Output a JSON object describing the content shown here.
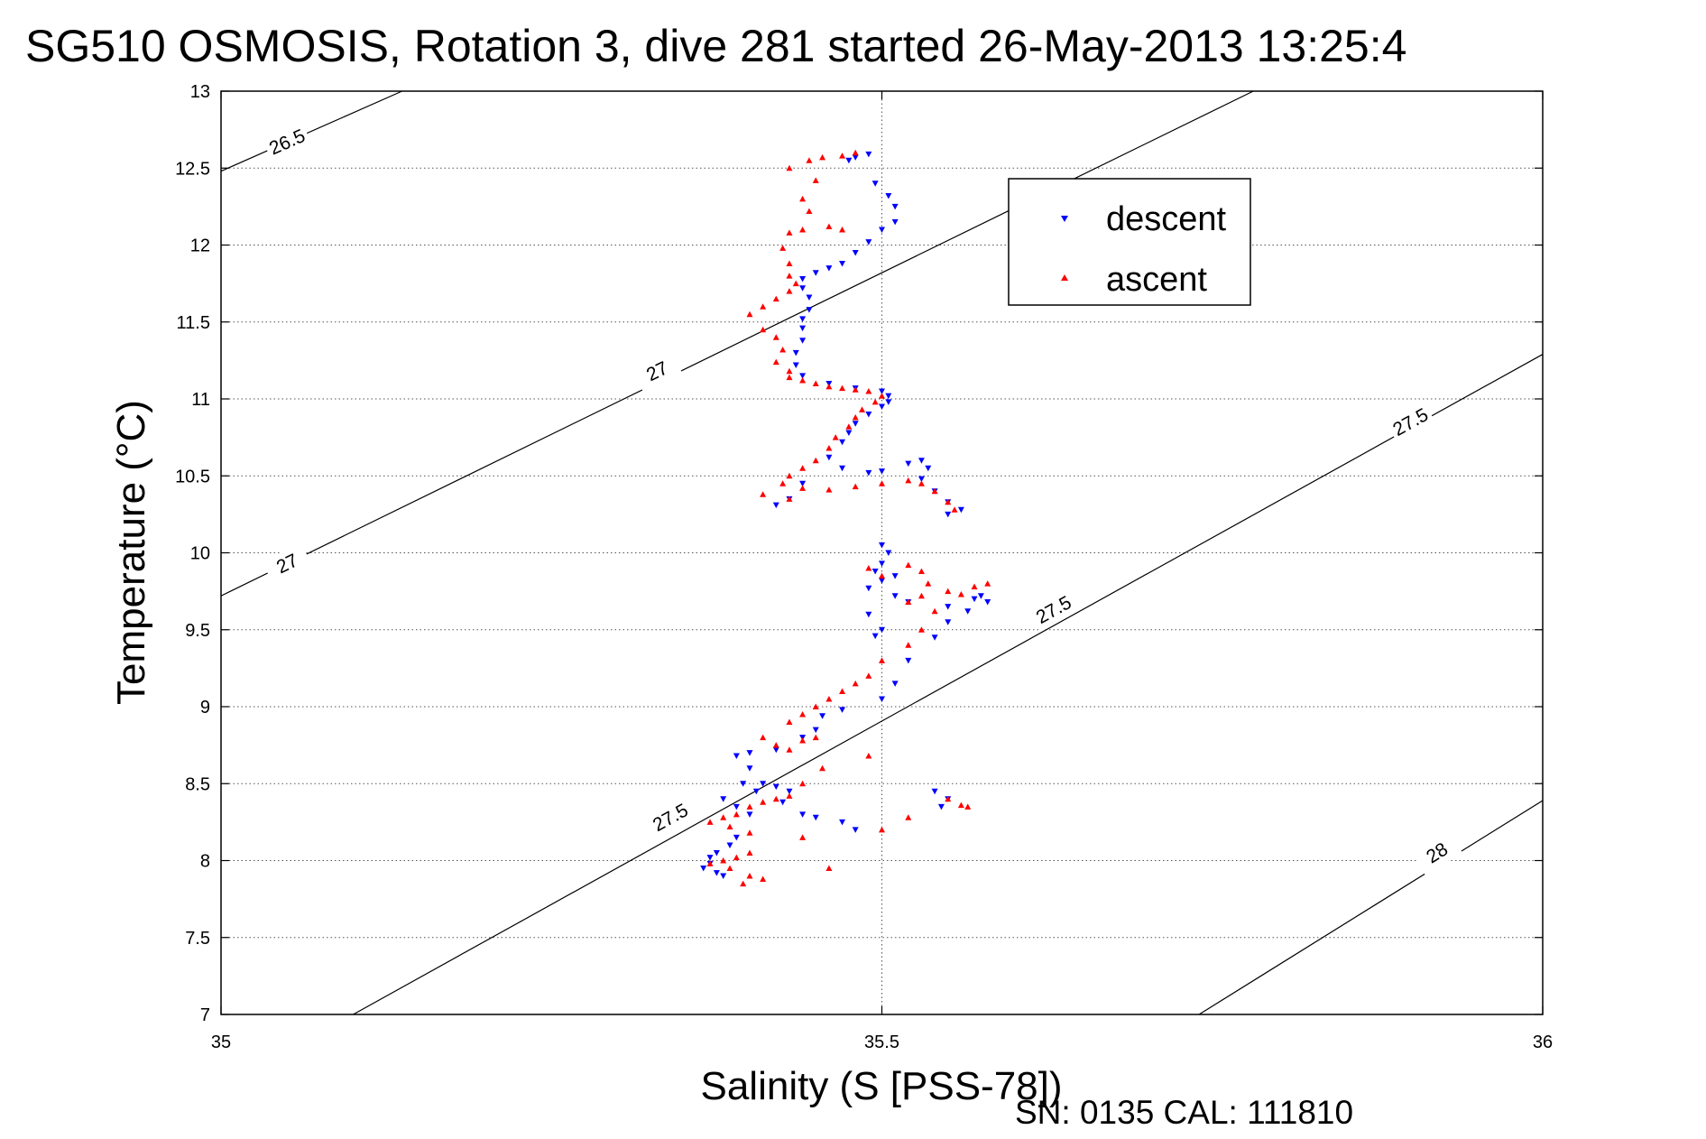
{
  "chart_data": {
    "type": "scatter",
    "title": "SG510 OSMOSIS, Rotation 3, dive 281 started 26-May-2013 13:25:4",
    "xlabel": "Salinity (S [PSS-78])",
    "ylabel": "Temperature (°C)",
    "xlim": [
      35,
      36
    ],
    "ylim": [
      7,
      13
    ],
    "x_ticks": [
      "35",
      "35.5",
      "36"
    ],
    "y_ticks": [
      "7",
      "7.5",
      "8",
      "8.5",
      "9",
      "9.5",
      "10",
      "10.5",
      "11",
      "11.5",
      "12",
      "12.5",
      "13"
    ],
    "grid": true,
    "legend_position": "top-right",
    "footer_text": "SN: 0135  CAL: 111810",
    "density_contours": [
      {
        "label": "26.5",
        "points": [
          [
            35,
            12.48
          ],
          [
            35.137,
            13
          ]
        ],
        "label_at": [
          [
            35.05,
            12.67
          ]
        ]
      },
      {
        "label": "27",
        "points": [
          [
            35,
            9.72
          ],
          [
            35.781,
            13
          ]
        ],
        "label_at": [
          [
            35.05,
            9.93
          ],
          [
            35.33,
            11.18
          ]
        ]
      },
      {
        "label": "27.5",
        "points": [
          [
            35.1,
            7
          ],
          [
            36,
            11.29
          ]
        ],
        "label_at": [
          [
            35.34,
            8.28
          ],
          [
            35.63,
            9.63
          ],
          [
            35.9,
            10.85
          ]
        ]
      },
      {
        "label": "28",
        "points": [
          [
            35.74,
            7
          ],
          [
            36,
            8.39
          ]
        ],
        "label_at": [
          [
            35.92,
            8.05
          ]
        ]
      }
    ],
    "series": [
      {
        "name": "descent",
        "color": "#0000ff",
        "marker": "triangle-down",
        "points": [
          [
            35.48,
            12.57
          ],
          [
            35.475,
            12.55
          ],
          [
            35.49,
            12.59
          ],
          [
            35.495,
            12.4
          ],
          [
            35.505,
            12.32
          ],
          [
            35.51,
            12.25
          ],
          [
            35.51,
            12.15
          ],
          [
            35.5,
            12.1
          ],
          [
            35.49,
            12.02
          ],
          [
            35.48,
            11.95
          ],
          [
            35.47,
            11.88
          ],
          [
            35.46,
            11.85
          ],
          [
            35.45,
            11.82
          ],
          [
            35.44,
            11.78
          ],
          [
            35.44,
            11.72
          ],
          [
            35.445,
            11.66
          ],
          [
            35.445,
            11.58
          ],
          [
            35.44,
            11.52
          ],
          [
            35.44,
            11.46
          ],
          [
            35.44,
            11.38
          ],
          [
            35.435,
            11.3
          ],
          [
            35.435,
            11.22
          ],
          [
            35.44,
            11.15
          ],
          [
            35.46,
            11.1
          ],
          [
            35.48,
            11.07
          ],
          [
            35.5,
            11.05
          ],
          [
            35.505,
            11.02
          ],
          [
            35.505,
            10.98
          ],
          [
            35.5,
            10.95
          ],
          [
            35.49,
            10.9
          ],
          [
            35.48,
            10.84
          ],
          [
            35.475,
            10.78
          ],
          [
            35.47,
            10.72
          ],
          [
            35.46,
            10.62
          ],
          [
            35.47,
            10.55
          ],
          [
            35.49,
            10.52
          ],
          [
            35.5,
            10.53
          ],
          [
            35.52,
            10.58
          ],
          [
            35.53,
            10.6
          ],
          [
            35.535,
            10.55
          ],
          [
            35.53,
            10.48
          ],
          [
            35.54,
            10.4
          ],
          [
            35.55,
            10.33
          ],
          [
            35.56,
            10.28
          ],
          [
            35.55,
            10.25
          ],
          [
            35.42,
            10.31
          ],
          [
            35.43,
            10.35
          ],
          [
            35.44,
            10.45
          ],
          [
            35.5,
            10.05
          ],
          [
            35.505,
            10.0
          ],
          [
            35.5,
            9.93
          ],
          [
            35.495,
            9.88
          ],
          [
            35.51,
            9.85
          ],
          [
            35.5,
            9.82
          ],
          [
            35.49,
            9.77
          ],
          [
            35.51,
            9.72
          ],
          [
            35.52,
            9.68
          ],
          [
            35.49,
            9.6
          ],
          [
            35.5,
            9.5
          ],
          [
            35.495,
            9.46
          ],
          [
            35.55,
            9.65
          ],
          [
            35.57,
            9.7
          ],
          [
            35.575,
            9.72
          ],
          [
            35.58,
            9.68
          ],
          [
            35.565,
            9.62
          ],
          [
            35.55,
            9.55
          ],
          [
            35.54,
            9.45
          ],
          [
            35.52,
            9.3
          ],
          [
            35.51,
            9.15
          ],
          [
            35.5,
            9.05
          ],
          [
            35.47,
            8.98
          ],
          [
            35.455,
            8.94
          ],
          [
            35.45,
            8.85
          ],
          [
            35.44,
            8.8
          ],
          [
            35.42,
            8.72
          ],
          [
            35.4,
            8.7
          ],
          [
            35.39,
            8.68
          ],
          [
            35.4,
            8.6
          ],
          [
            35.41,
            8.5
          ],
          [
            35.405,
            8.45
          ],
          [
            35.395,
            8.5
          ],
          [
            35.38,
            8.4
          ],
          [
            35.39,
            8.35
          ],
          [
            35.4,
            8.3
          ],
          [
            35.42,
            8.48
          ],
          [
            35.43,
            8.45
          ],
          [
            35.425,
            8.38
          ],
          [
            35.44,
            8.3
          ],
          [
            35.45,
            8.28
          ],
          [
            35.47,
            8.25
          ],
          [
            35.48,
            8.2
          ],
          [
            35.39,
            8.15
          ],
          [
            35.385,
            8.1
          ],
          [
            35.375,
            8.05
          ],
          [
            35.37,
            8.02
          ],
          [
            35.37,
            7.98
          ],
          [
            35.365,
            7.95
          ],
          [
            35.375,
            7.92
          ],
          [
            35.38,
            7.9
          ],
          [
            35.54,
            8.45
          ],
          [
            35.55,
            8.4
          ],
          [
            35.545,
            8.35
          ]
        ]
      },
      {
        "name": "ascent",
        "color": "#ff0000",
        "marker": "triangle-up",
        "points": [
          [
            35.48,
            12.6
          ],
          [
            35.47,
            12.58
          ],
          [
            35.455,
            12.57
          ],
          [
            35.445,
            12.55
          ],
          [
            35.43,
            12.5
          ],
          [
            35.45,
            12.42
          ],
          [
            35.44,
            12.3
          ],
          [
            35.445,
            12.22
          ],
          [
            35.46,
            12.12
          ],
          [
            35.47,
            12.1
          ],
          [
            35.44,
            12.1
          ],
          [
            35.43,
            12.08
          ],
          [
            35.425,
            11.98
          ],
          [
            35.43,
            11.88
          ],
          [
            35.43,
            11.8
          ],
          [
            35.435,
            11.75
          ],
          [
            35.43,
            11.7
          ],
          [
            35.42,
            11.65
          ],
          [
            35.41,
            11.6
          ],
          [
            35.4,
            11.55
          ],
          [
            35.41,
            11.45
          ],
          [
            35.42,
            11.4
          ],
          [
            35.425,
            11.32
          ],
          [
            35.42,
            11.24
          ],
          [
            35.43,
            11.18
          ],
          [
            35.43,
            11.14
          ],
          [
            35.44,
            11.12
          ],
          [
            35.45,
            11.1
          ],
          [
            35.46,
            11.08
          ],
          [
            35.47,
            11.07
          ],
          [
            35.48,
            11.06
          ],
          [
            35.49,
            11.05
          ],
          [
            35.5,
            11.02
          ],
          [
            35.495,
            10.98
          ],
          [
            35.485,
            10.93
          ],
          [
            35.48,
            10.88
          ],
          [
            35.475,
            10.82
          ],
          [
            35.465,
            10.75
          ],
          [
            35.46,
            10.68
          ],
          [
            35.45,
            10.6
          ],
          [
            35.44,
            10.55
          ],
          [
            35.43,
            10.5
          ],
          [
            35.425,
            10.45
          ],
          [
            35.44,
            10.42
          ],
          [
            35.46,
            10.41
          ],
          [
            35.48,
            10.43
          ],
          [
            35.5,
            10.45
          ],
          [
            35.52,
            10.47
          ],
          [
            35.53,
            10.45
          ],
          [
            35.54,
            10.4
          ],
          [
            35.55,
            10.33
          ],
          [
            35.555,
            10.28
          ],
          [
            35.41,
            10.38
          ],
          [
            35.43,
            10.35
          ],
          [
            35.49,
            9.9
          ],
          [
            35.5,
            9.85
          ],
          [
            35.52,
            9.92
          ],
          [
            35.53,
            9.88
          ],
          [
            35.535,
            9.8
          ],
          [
            35.53,
            9.72
          ],
          [
            35.52,
            9.68
          ],
          [
            35.54,
            9.62
          ],
          [
            35.55,
            9.75
          ],
          [
            35.56,
            9.73
          ],
          [
            35.57,
            9.78
          ],
          [
            35.58,
            9.8
          ],
          [
            35.53,
            9.5
          ],
          [
            35.52,
            9.4
          ],
          [
            35.5,
            9.3
          ],
          [
            35.49,
            9.2
          ],
          [
            35.48,
            9.15
          ],
          [
            35.47,
            9.1
          ],
          [
            35.46,
            9.05
          ],
          [
            35.45,
            9.0
          ],
          [
            35.44,
            8.95
          ],
          [
            35.43,
            8.9
          ],
          [
            35.45,
            8.8
          ],
          [
            35.44,
            8.78
          ],
          [
            35.42,
            8.75
          ],
          [
            35.41,
            8.8
          ],
          [
            35.43,
            8.72
          ],
          [
            35.49,
            8.68
          ],
          [
            35.455,
            8.6
          ],
          [
            35.44,
            8.5
          ],
          [
            35.43,
            8.42
          ],
          [
            35.42,
            8.4
          ],
          [
            35.41,
            8.38
          ],
          [
            35.4,
            8.35
          ],
          [
            35.39,
            8.3
          ],
          [
            35.38,
            8.28
          ],
          [
            35.37,
            8.25
          ],
          [
            35.385,
            8.22
          ],
          [
            35.4,
            8.18
          ],
          [
            35.44,
            8.15
          ],
          [
            35.5,
            8.2
          ],
          [
            35.52,
            8.28
          ],
          [
            35.4,
            8.05
          ],
          [
            35.39,
            8.02
          ],
          [
            35.38,
            8.0
          ],
          [
            35.37,
            7.98
          ],
          [
            35.385,
            7.95
          ],
          [
            35.4,
            7.9
          ],
          [
            35.41,
            7.88
          ],
          [
            35.395,
            7.85
          ],
          [
            35.46,
            7.95
          ],
          [
            35.55,
            8.4
          ],
          [
            35.56,
            8.36
          ],
          [
            35.565,
            8.35
          ]
        ]
      }
    ]
  }
}
